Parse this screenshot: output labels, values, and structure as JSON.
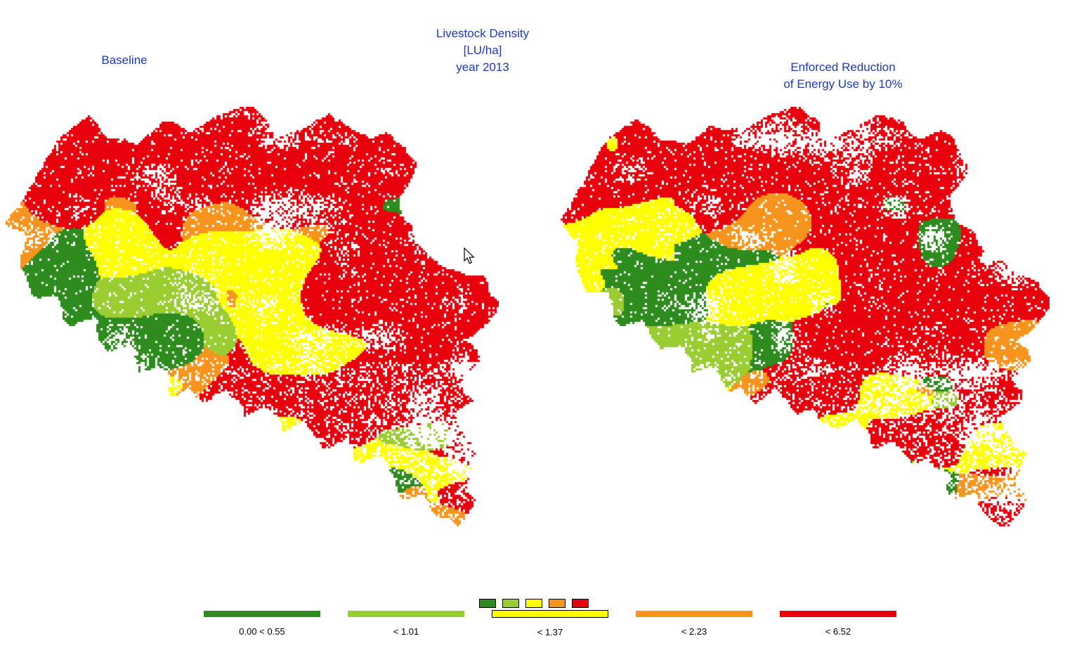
{
  "colors": {
    "background": "#ffffff",
    "title_text": "#1f3bb4",
    "label_text": "#000000"
  },
  "titles": {
    "center": [
      "Livestock Density",
      "[LU/ha]",
      "year 2013"
    ],
    "left_map": "Baseline",
    "right_map": [
      "Enforced Reduction",
      "of Energy Use by 10%"
    ]
  },
  "legend": {
    "selected_index": 2,
    "classes": [
      {
        "name": "dark-green",
        "color": "#2e8b1e",
        "label": "0.00 < 0.55"
      },
      {
        "name": "light-green",
        "color": "#9acd32",
        "label": "< 1.01"
      },
      {
        "name": "yellow",
        "color": "#ffff00",
        "label": "< 1.37"
      },
      {
        "name": "orange",
        "color": "#f7941e",
        "label": "< 2.23"
      },
      {
        "name": "red",
        "color": "#e8000d",
        "label": "< 6.52"
      }
    ]
  }
}
